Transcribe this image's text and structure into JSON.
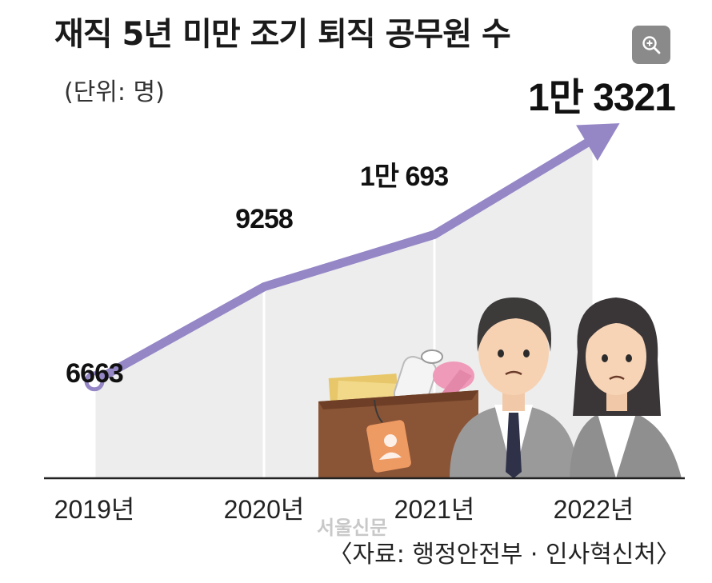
{
  "title": "재직 5년 미만 조기 퇴직 공무원 수",
  "unit_label": "(단위: 명)",
  "source": "〈자료: 행정안전부 · 인사혁신처〉",
  "watermark": "서울신문",
  "zoom_icon": "zoom-in-icon",
  "colors": {
    "line": "#9586c6",
    "band": "#ededed",
    "axis": "#222222",
    "text": "#111111"
  },
  "chart_data": {
    "type": "line",
    "categories": [
      "2019년",
      "2020년",
      "2021년",
      "2022년"
    ],
    "values": [
      6663,
      9258,
      10693,
      13321
    ],
    "data_labels": [
      "6663",
      "9258",
      "1만 693",
      "1만 3321"
    ],
    "ylim": [
      4000,
      14500
    ],
    "grid": false,
    "end_arrow": true
  }
}
